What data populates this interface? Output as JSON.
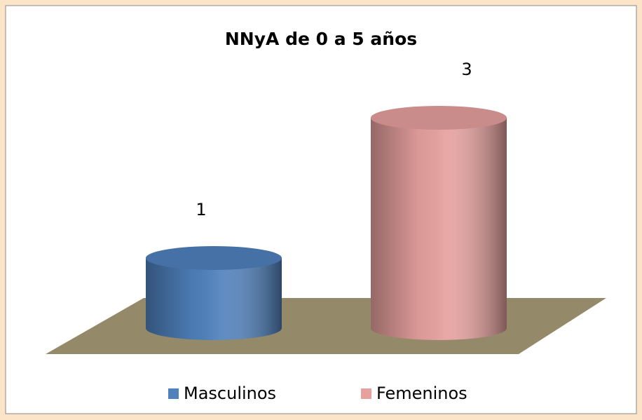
{
  "chart_data": {
    "type": "bar",
    "title": "NNyA de 0 a 5 años",
    "categories": [
      null
    ],
    "series": [
      {
        "name": "Masculinos",
        "color": "#4f81bd",
        "values": [
          1
        ]
      },
      {
        "name": "Femeninos",
        "color": "#e6a09e",
        "values": [
          3
        ]
      }
    ]
  }
}
